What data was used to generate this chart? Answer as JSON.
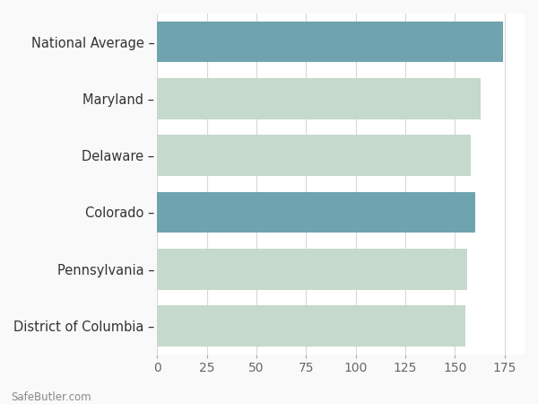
{
  "categories": [
    "District of Columbia",
    "Pennsylvania",
    "Colorado",
    "Delaware",
    "Maryland",
    "National Average"
  ],
  "values": [
    155,
    156,
    160,
    158,
    163,
    174
  ],
  "bar_colors": [
    "#c5d9cc",
    "#c5d9cc",
    "#6fa3b0",
    "#c5d9cc",
    "#c5d9cc",
    "#6fa3b0"
  ],
  "row_bg_colors": [
    "#f0f5f2",
    "#ffffff",
    "#f0f5f2",
    "#ffffff",
    "#f0f5f2",
    "#ffffff"
  ],
  "xlim": [
    0,
    185
  ],
  "xticks": [
    0,
    25,
    50,
    75,
    100,
    125,
    150,
    175
  ],
  "background_color": "#f9f9f9",
  "grid_color": "#d8d8d8",
  "footer_text": "SafeButler.com",
  "tick_fontsize": 10,
  "label_fontsize": 10.5,
  "bar_height": 0.72
}
